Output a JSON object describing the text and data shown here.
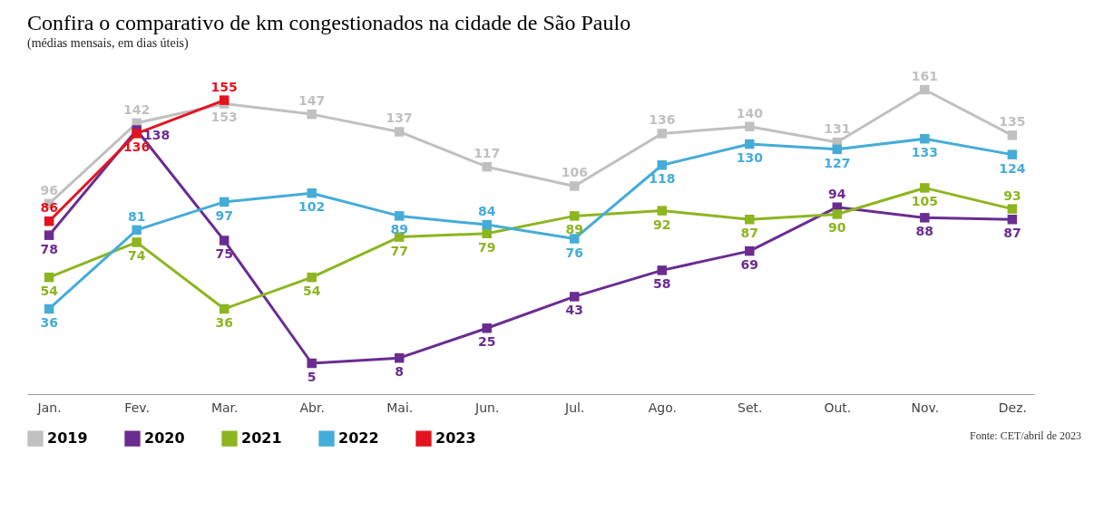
{
  "chart_data": {
    "type": "line",
    "title": "Confira o comparativo de km congestionados na cidade de São Paulo",
    "subtitle": "(médias mensais, em dias úteis)",
    "categories": [
      "Jan.",
      "Fev.",
      "Mar.",
      "Abr.",
      "Mai.",
      "Jun.",
      "Jul.",
      "Ago.",
      "Set.",
      "Out.",
      "Nov.",
      "Dez."
    ],
    "series": [
      {
        "name": "2019",
        "color": "#c0c0c0",
        "values": [
          96,
          142,
          153,
          147,
          137,
          117,
          106,
          136,
          140,
          131,
          161,
          135
        ]
      },
      {
        "name": "2020",
        "color": "#6a2c91",
        "values": [
          78,
          138,
          75,
          5,
          8,
          25,
          43,
          58,
          69,
          94,
          88,
          87
        ]
      },
      {
        "name": "2021",
        "color": "#8db51f",
        "values": [
          54,
          74,
          36,
          54,
          77,
          79,
          89,
          92,
          87,
          90,
          105,
          93
        ]
      },
      {
        "name": "2022",
        "color": "#45acd8",
        "values": [
          36,
          81,
          97,
          102,
          89,
          84,
          76,
          118,
          130,
          127,
          133,
          124
        ]
      },
      {
        "name": "2023",
        "color": "#e3141f",
        "values": [
          86,
          136,
          155,
          null,
          null,
          null,
          null,
          null,
          null,
          null,
          null,
          null
        ]
      }
    ],
    "data_labels": true,
    "marker": "square",
    "line_style": "solid",
    "grid": false,
    "legend": "bottom",
    "tick_labels": "x",
    "annotations": [
      "Fonte: CET/abril de 2023"
    ]
  }
}
